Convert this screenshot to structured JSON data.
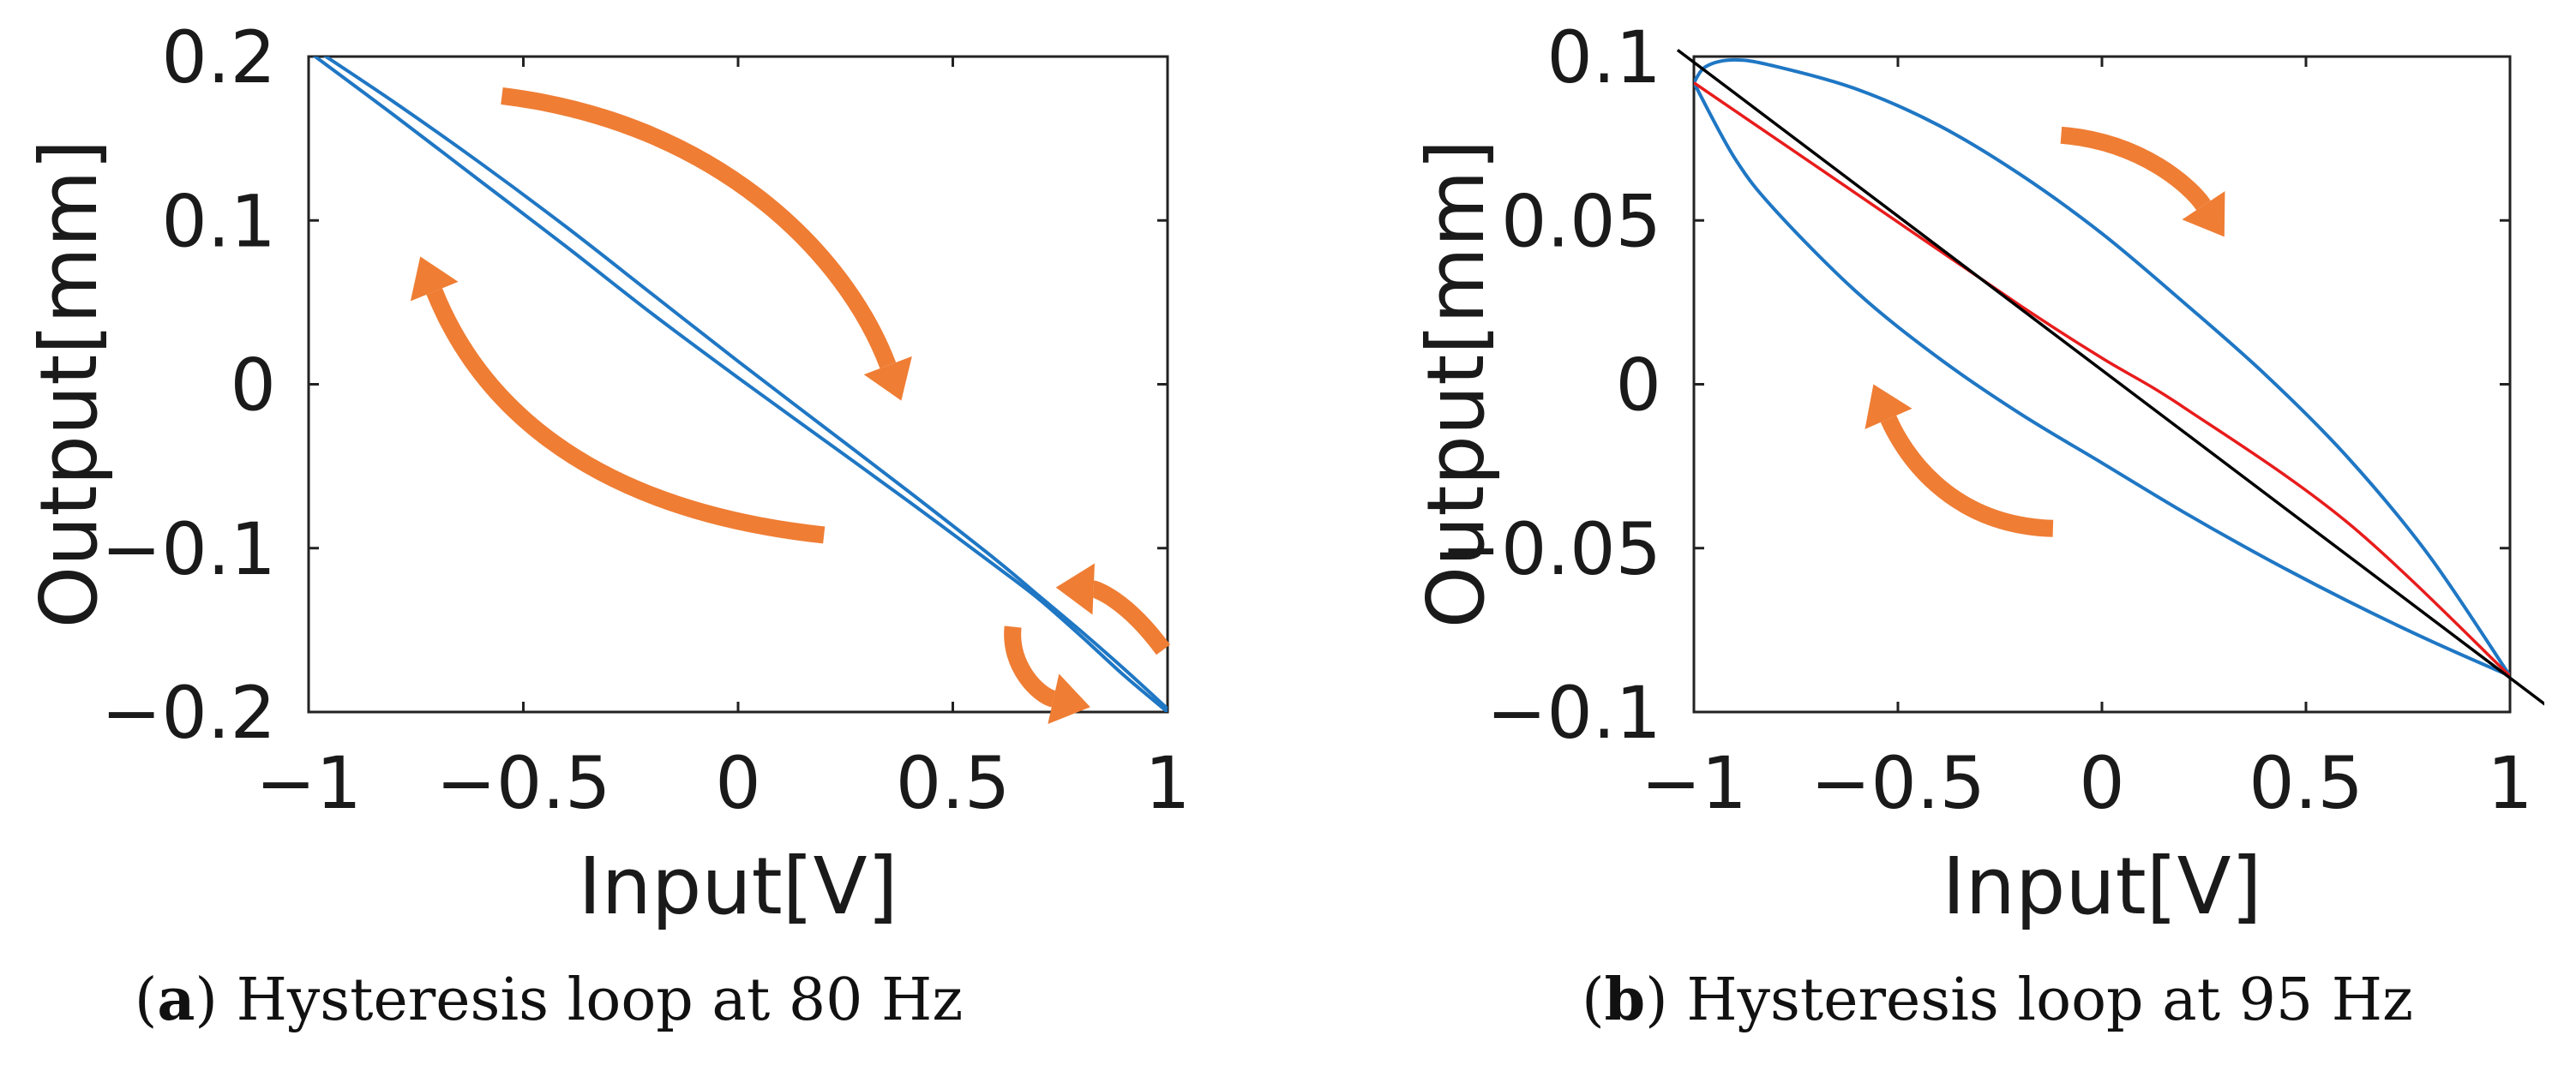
{
  "chart_data": [
    {
      "type": "line",
      "panel": "a",
      "caption_letter": "a",
      "caption_text": "Hysteresis loop at 80 Hz",
      "xlabel": "Input[V]",
      "ylabel": "Output[mm]",
      "xlim": [
        -1,
        1
      ],
      "ylim": [
        -0.2,
        0.2
      ],
      "xticks": [
        {
          "v": -1,
          "label": "−1"
        },
        {
          "v": -0.5,
          "label": "−0.5"
        },
        {
          "v": 0,
          "label": "0"
        },
        {
          "v": 0.5,
          "label": "0.5"
        },
        {
          "v": 1,
          "label": "1"
        }
      ],
      "yticks": [
        {
          "v": -0.2,
          "label": "−0.2"
        },
        {
          "v": -0.1,
          "label": "−0.1"
        },
        {
          "v": 0,
          "label": "0"
        },
        {
          "v": 0.1,
          "label": "0.1"
        },
        {
          "v": 0.2,
          "label": "0.2"
        }
      ],
      "series": [
        {
          "name": "loop-upper",
          "color": "#1f77c4",
          "x": [
            -1,
            -0.8,
            -0.6,
            -0.4,
            -0.2,
            0,
            0.2,
            0.4,
            0.6,
            0.7,
            0.8,
            0.9,
            1
          ],
          "y": [
            0.207,
            0.172,
            0.135,
            0.096,
            0.055,
            0.014,
            -0.026,
            -0.066,
            -0.107,
            -0.129,
            -0.151,
            -0.174,
            -0.198
          ]
        },
        {
          "name": "loop-lower",
          "color": "#1f77c4",
          "x": [
            -1,
            -0.8,
            -0.6,
            -0.4,
            -0.2,
            0,
            0.2,
            0.4,
            0.6,
            0.7,
            0.8,
            0.9,
            1
          ],
          "y": [
            0.203,
            0.164,
            0.124,
            0.084,
            0.043,
            0.004,
            -0.034,
            -0.072,
            -0.111,
            -0.131,
            -0.154,
            -0.178,
            -0.2
          ]
        }
      ],
      "arrows": [
        {
          "name": "arrow-top",
          "color": "#ef7d34",
          "points": [
            [
              -0.55,
              0.176
            ],
            [
              -0.05,
              0.16
            ],
            [
              0.25,
              0.08
            ],
            [
              0.38,
              -0.01
            ]
          ]
        },
        {
          "name": "arrow-left",
          "color": "#ef7d34",
          "points": [
            [
              0.2,
              -0.092
            ],
            [
              -0.4,
              -0.075
            ],
            [
              -0.62,
              0.0
            ],
            [
              -0.74,
              0.078
            ]
          ]
        },
        {
          "name": "arrow-right-upper",
          "color": "#ef7d34",
          "points": [
            [
              0.99,
              -0.162
            ],
            [
              0.9,
              -0.13
            ],
            [
              0.83,
              -0.125
            ],
            [
              0.74,
              -0.124
            ]
          ]
        },
        {
          "name": "arrow-right-lower",
          "color": "#ef7d34",
          "points": [
            [
              0.64,
              -0.148
            ],
            [
              0.63,
              -0.172
            ],
            [
              0.7,
              -0.19
            ],
            [
              0.82,
              -0.197
            ]
          ]
        }
      ]
    },
    {
      "type": "line",
      "panel": "b",
      "caption_letter": "b",
      "caption_text": "Hysteresis loop at 95 Hz",
      "xlabel": "Input[V]",
      "ylabel": "Output[mm]",
      "xlim": [
        -1,
        1
      ],
      "ylim": [
        -0.1,
        0.1
      ],
      "xticks": [
        {
          "v": -1,
          "label": "−1"
        },
        {
          "v": -0.5,
          "label": "−0.5"
        },
        {
          "v": 0,
          "label": "0"
        },
        {
          "v": 0.5,
          "label": "0.5"
        },
        {
          "v": 1,
          "label": "1"
        }
      ],
      "yticks": [
        {
          "v": -0.1,
          "label": "−0.1"
        },
        {
          "v": -0.05,
          "label": "−0.05"
        },
        {
          "v": 0,
          "label": "0"
        },
        {
          "v": 0.05,
          "label": "0.05"
        },
        {
          "v": 0.1,
          "label": "0.1"
        }
      ],
      "series": [
        {
          "name": "loop-upper",
          "color": "#1f77c4",
          "x": [
            -1,
            -0.97,
            -0.9,
            -0.8,
            -0.6,
            -0.4,
            -0.2,
            0,
            0.2,
            0.4,
            0.6,
            0.8,
            1
          ],
          "y": [
            0.092,
            0.097,
            0.099,
            0.097,
            0.09,
            0.079,
            0.064,
            0.046,
            0.025,
            0.003,
            -0.022,
            -0.052,
            -0.089
          ]
        },
        {
          "name": "loop-lower",
          "color": "#1f77c4",
          "x": [
            -1,
            -0.9,
            -0.8,
            -0.6,
            -0.4,
            -0.2,
            0,
            0.2,
            0.4,
            0.6,
            0.8,
            1
          ],
          "y": [
            0.092,
            0.069,
            0.053,
            0.028,
            0.008,
            -0.009,
            -0.024,
            -0.039,
            -0.053,
            -0.066,
            -0.078,
            -0.089
          ]
        },
        {
          "name": "mean-curve",
          "color": "#e81c1c",
          "x": [
            -1,
            -0.6,
            -0.2,
            0,
            0.2,
            0.6,
            1
          ],
          "y": [
            0.092,
            0.058,
            0.024,
            0.008,
            -0.007,
            -0.042,
            -0.089
          ]
        },
        {
          "name": "linear-fit",
          "color": "#000000",
          "x": [
            -1.04,
            1.1
          ],
          "y": [
            0.102,
            -0.099
          ]
        }
      ],
      "arrows": [
        {
          "name": "arrow-upper-right",
          "color": "#ef7d34",
          "points": [
            [
              -0.1,
              0.076
            ],
            [
              0.1,
              0.074
            ],
            [
              0.22,
              0.06
            ],
            [
              0.3,
              0.045
            ]
          ]
        },
        {
          "name": "arrow-lower-left",
          "color": "#ef7d34",
          "points": [
            [
              -0.12,
              -0.044
            ],
            [
              -0.38,
              -0.043
            ],
            [
              -0.49,
              -0.02
            ],
            [
              -0.56,
              0.0
            ]
          ]
        }
      ]
    }
  ]
}
